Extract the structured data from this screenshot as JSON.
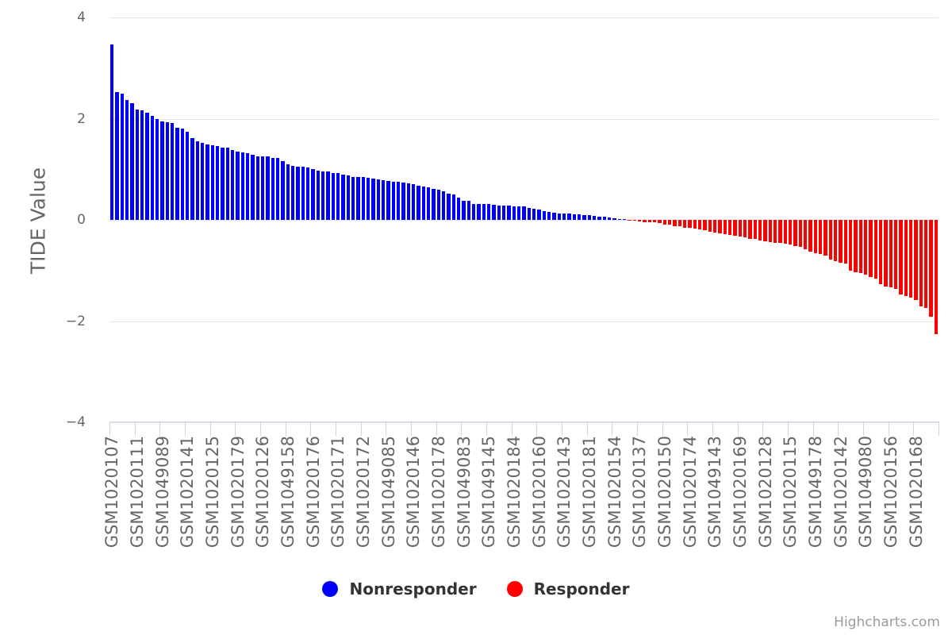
{
  "chart": {
    "yaxis_title": "TIDE Value",
    "credit": "Highcharts.com",
    "accent_colors": {
      "nonresponder": "#0000ff",
      "responder": "#ff0000",
      "gridline": "#e6e6e6",
      "axis_line": "#ccd6eb",
      "label_text": "#666666",
      "legend_text": "#333333"
    },
    "legend": {
      "items": [
        {
          "label": "Nonresponder",
          "color": "#0000ff"
        },
        {
          "label": "Responder",
          "color": "#ff0000"
        }
      ]
    }
  },
  "chart_data": {
    "type": "bar",
    "title": "",
    "xlabel": "",
    "ylabel": "TIDE Value",
    "ylim": [
      -4,
      4
    ],
    "ytick_labels": [
      "4",
      "2",
      "0",
      "−2",
      "−4"
    ],
    "ytick_values": [
      4,
      2,
      0,
      -2,
      -4
    ],
    "grid": true,
    "legend_position": "bottom",
    "n_points": 165,
    "x_label_step": 5,
    "x_tick_labels": [
      "GSM1020107",
      "GSM1020111",
      "GSM1049089",
      "GSM1020141",
      "GSM1020125",
      "GSM1020179",
      "GSM1020126",
      "GSM1049158",
      "GSM1020176",
      "GSM1020171",
      "GSM1020172",
      "GSM1049085",
      "GSM1020146",
      "GSM1020178",
      "GSM1049083",
      "GSM1049145",
      "GSM1020184",
      "GSM1020160",
      "GSM1020143",
      "GSM1020181",
      "GSM1020154",
      "GSM1020137",
      "GSM1020150",
      "GSM1020174",
      "GSM1049143",
      "GSM1020169",
      "GSM1020128",
      "GSM1020115",
      "GSM1049178",
      "GSM1020142",
      "GSM1049080",
      "GSM1020156",
      "GSM1020168"
    ],
    "series": [
      {
        "name": "Nonresponder",
        "color": "#0000ff",
        "values": [
          3.46,
          2.53,
          2.5,
          2.37,
          2.31,
          2.18,
          2.16,
          2.11,
          2.06,
          2.0,
          1.94,
          1.93,
          1.91,
          1.82,
          1.81,
          1.74,
          1.62,
          1.56,
          1.52,
          1.49,
          1.48,
          1.46,
          1.43,
          1.42,
          1.38,
          1.35,
          1.33,
          1.31,
          1.28,
          1.26,
          1.25,
          1.25,
          1.22,
          1.22,
          1.16,
          1.1,
          1.07,
          1.05,
          1.05,
          1.04,
          1.01,
          0.98,
          0.96,
          0.95,
          0.93,
          0.92,
          0.89,
          0.88,
          0.85,
          0.84,
          0.84,
          0.83,
          0.81,
          0.8,
          0.79,
          0.77,
          0.76,
          0.75,
          0.74,
          0.72,
          0.71,
          0.68,
          0.66,
          0.64,
          0.61,
          0.59,
          0.56,
          0.52,
          0.5,
          0.44,
          0.38,
          0.38,
          0.32,
          0.32,
          0.31,
          0.31,
          0.3,
          0.28,
          0.28,
          0.28,
          0.27,
          0.27,
          0.26,
          0.24,
          0.22,
          0.2,
          0.18,
          0.15,
          0.14,
          0.13,
          0.13,
          0.12,
          0.11,
          0.11,
          0.1,
          0.09,
          0.08,
          0.07,
          0.06,
          0.04,
          0.03,
          0.02,
          0.01
        ]
      },
      {
        "name": "Responder",
        "color": "#ff0000",
        "values": [
          -0.01,
          -0.02,
          -0.03,
          -0.05,
          -0.05,
          -0.05,
          -0.07,
          -0.09,
          -0.1,
          -0.12,
          -0.13,
          -0.15,
          -0.16,
          -0.18,
          -0.19,
          -0.21,
          -0.23,
          -0.25,
          -0.26,
          -0.28,
          -0.3,
          -0.32,
          -0.33,
          -0.35,
          -0.37,
          -0.38,
          -0.4,
          -0.42,
          -0.44,
          -0.45,
          -0.46,
          -0.47,
          -0.49,
          -0.51,
          -0.53,
          -0.58,
          -0.62,
          -0.66,
          -0.68,
          -0.71,
          -0.79,
          -0.82,
          -0.84,
          -0.87,
          -1.0,
          -1.03,
          -1.05,
          -1.09,
          -1.13,
          -1.16,
          -1.27,
          -1.31,
          -1.34,
          -1.37,
          -1.47,
          -1.5,
          -1.53,
          -1.58,
          -1.71,
          -1.74,
          -1.91,
          -2.26
        ]
      }
    ]
  }
}
